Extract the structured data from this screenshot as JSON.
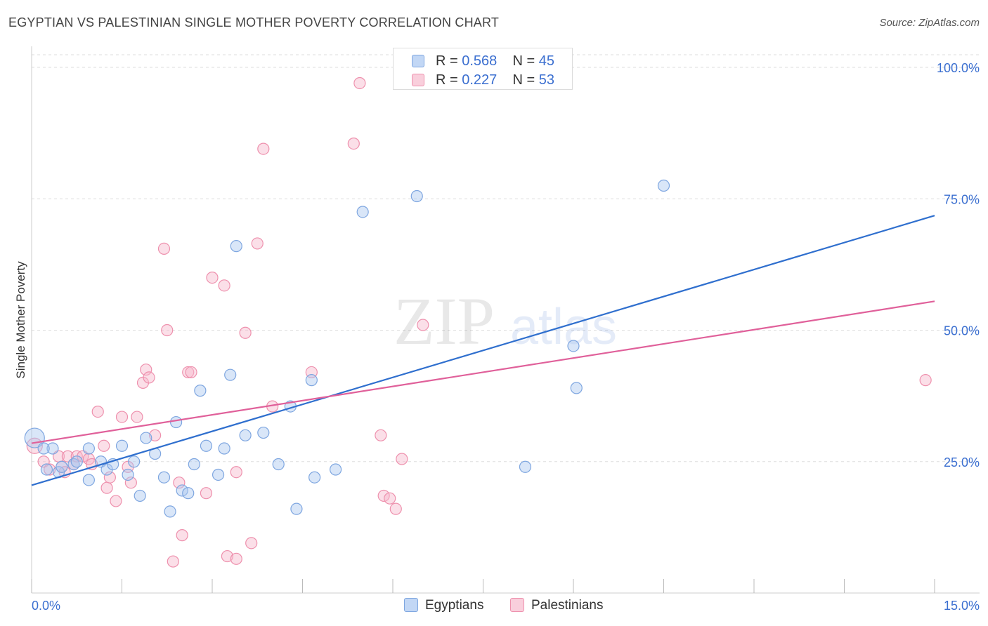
{
  "header": {
    "title": "EGYPTIAN VS PALESTINIAN SINGLE MOTHER POVERTY CORRELATION CHART",
    "source": "Source: ZipAtlas.com"
  },
  "watermark": {
    "zip": "ZIP",
    "atlas": "atlas"
  },
  "legend": {
    "rows": [
      {
        "r_label": "R = ",
        "r_value": "0.568",
        "n_label": "N = ",
        "n_value": "45"
      },
      {
        "r_label": "R = ",
        "r_value": "0.227",
        "n_label": "N = ",
        "n_value": "53"
      }
    ]
  },
  "bottom_legend": {
    "egyptians": "Egyptians",
    "palestinians": "Palestinians"
  },
  "colors": {
    "egyptians_fill": "#aac8f0",
    "egyptians_stroke": "#7ea6e0",
    "egyptians_line": "#2f6fce",
    "palestinians_fill": "#f6b9cc",
    "palestinians_stroke": "#ee90ad",
    "palestinians_line": "#e0609a",
    "tick_label": "#3b6fd0"
  },
  "chart_data": {
    "type": "scatter",
    "title": "EGYPTIAN VS PALESTINIAN SINGLE MOTHER POVERTY CORRELATION CHART",
    "xlabel": "",
    "ylabel": "Single Mother Poverty",
    "xlim": [
      0,
      15
    ],
    "ylim": [
      0,
      100
    ],
    "x_tick_labels": [
      "0.0%",
      "15.0%"
    ],
    "y_tick_labels": [
      "25.0%",
      "50.0%",
      "75.0%",
      "100.0%"
    ],
    "y_ticks": [
      25,
      50,
      75,
      100
    ],
    "grid": true,
    "legend_position": "top-center",
    "series": [
      {
        "name": "Egyptians",
        "R": 0.568,
        "N": 45,
        "trend": {
          "x": [
            0,
            15
          ],
          "y": [
            20.5,
            71.8
          ]
        },
        "points": [
          [
            0.05,
            29.5
          ],
          [
            0.35,
            27.5
          ],
          [
            0.25,
            23.5
          ],
          [
            0.45,
            23.0
          ],
          [
            0.5,
            24.0
          ],
          [
            0.7,
            24.5
          ],
          [
            0.95,
            27.5
          ],
          [
            0.95,
            21.5
          ],
          [
            1.15,
            25.0
          ],
          [
            1.25,
            23.5
          ],
          [
            1.35,
            24.5
          ],
          [
            1.5,
            28.0
          ],
          [
            1.6,
            22.5
          ],
          [
            1.7,
            25.0
          ],
          [
            1.8,
            18.5
          ],
          [
            1.9,
            29.5
          ],
          [
            2.05,
            26.5
          ],
          [
            2.2,
            22.0
          ],
          [
            2.3,
            15.5
          ],
          [
            2.4,
            32.5
          ],
          [
            2.5,
            19.5
          ],
          [
            2.6,
            19.0
          ],
          [
            2.7,
            24.5
          ],
          [
            2.8,
            38.5
          ],
          [
            2.9,
            28.0
          ],
          [
            3.1,
            22.5
          ],
          [
            3.2,
            27.5
          ],
          [
            3.3,
            41.5
          ],
          [
            3.4,
            66.0
          ],
          [
            3.55,
            30.0
          ],
          [
            3.85,
            30.5
          ],
          [
            4.1,
            24.5
          ],
          [
            4.3,
            35.5
          ],
          [
            4.4,
            16.0
          ],
          [
            4.65,
            40.5
          ],
          [
            4.7,
            22.0
          ],
          [
            5.05,
            23.5
          ],
          [
            5.5,
            72.5
          ],
          [
            6.4,
            75.5
          ],
          [
            8.2,
            24.0
          ],
          [
            9.0,
            47.0
          ],
          [
            9.05,
            39.0
          ],
          [
            10.5,
            77.5
          ],
          [
            0.2,
            27.5
          ],
          [
            0.75,
            25.0
          ]
        ]
      },
      {
        "name": "Palestinians",
        "R": 0.227,
        "N": 53,
        "trend": {
          "x": [
            0,
            15
          ],
          "y": [
            28.5,
            55.5
          ]
        },
        "points": [
          [
            0.05,
            28.0
          ],
          [
            0.2,
            25.0
          ],
          [
            0.3,
            23.5
          ],
          [
            0.45,
            26.0
          ],
          [
            0.5,
            24.0
          ],
          [
            0.55,
            23.0
          ],
          [
            0.6,
            26.0
          ],
          [
            0.7,
            24.5
          ],
          [
            0.75,
            26.0
          ],
          [
            0.85,
            26.0
          ],
          [
            0.95,
            25.5
          ],
          [
            1.0,
            24.5
          ],
          [
            1.1,
            34.5
          ],
          [
            1.2,
            28.0
          ],
          [
            1.25,
            20.0
          ],
          [
            1.3,
            22.0
          ],
          [
            1.4,
            17.5
          ],
          [
            1.5,
            33.5
          ],
          [
            1.6,
            24.0
          ],
          [
            1.65,
            21.0
          ],
          [
            1.75,
            33.5
          ],
          [
            1.85,
            40.0
          ],
          [
            1.9,
            42.5
          ],
          [
            1.95,
            41.0
          ],
          [
            2.05,
            30.0
          ],
          [
            2.2,
            65.5
          ],
          [
            2.25,
            50.0
          ],
          [
            2.35,
            6.0
          ],
          [
            2.45,
            21.0
          ],
          [
            2.5,
            11.0
          ],
          [
            2.6,
            42.0
          ],
          [
            2.65,
            42.0
          ],
          [
            2.9,
            19.0
          ],
          [
            3.0,
            60.0
          ],
          [
            3.2,
            58.5
          ],
          [
            3.25,
            7.0
          ],
          [
            3.4,
            23.0
          ],
          [
            3.4,
            6.5
          ],
          [
            3.55,
            49.5
          ],
          [
            3.65,
            9.5
          ],
          [
            3.75,
            66.5
          ],
          [
            3.85,
            84.5
          ],
          [
            4.0,
            35.5
          ],
          [
            4.65,
            42.0
          ],
          [
            5.35,
            85.5
          ],
          [
            5.45,
            97.0
          ],
          [
            5.8,
            30.0
          ],
          [
            5.85,
            18.5
          ],
          [
            5.95,
            18.0
          ],
          [
            6.05,
            16.0
          ],
          [
            6.15,
            25.5
          ],
          [
            6.5,
            51.0
          ],
          [
            14.85,
            40.5
          ]
        ]
      }
    ]
  }
}
